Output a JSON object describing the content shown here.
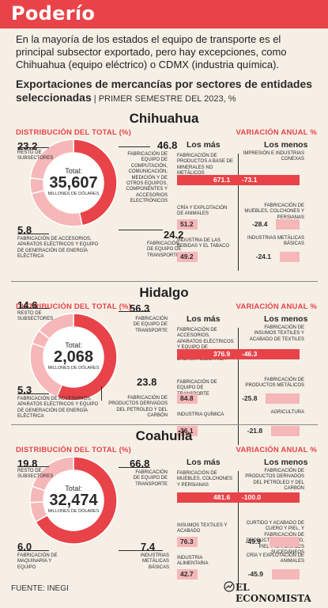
{
  "header": {
    "title": "Poderío"
  },
  "intro": "En la mayoría de los estados el equipo de transporte es el principal subsector exportado, pero hay excepciones, como Chihuahua (equipo eléctrico) o CDMX (industria química).",
  "subtitle": {
    "main": "Exportaciones de mercancías por sectores de entidades seleccionadas",
    "sep": " | ",
    "period": "PRIMER SEMESTRE DEL 2023, %"
  },
  "labels": {
    "dist": "DISTRIBUCIÓN DEL TOTAL (%)",
    "var": "VARIACIÓN ANUAL %",
    "mas": "Los más",
    "menos": "Los menos",
    "total": "Total:",
    "unit": "MILLONES DE DÓLARES"
  },
  "colors": {
    "accent": "#e84349",
    "light": "#f6b7b9",
    "center": "#ffffff"
  },
  "chart_data": [
    {
      "type": "pie",
      "state": "Chihuahua",
      "total": "35,607",
      "slices": [
        {
          "value": "46.8",
          "label": "FABRICACIÓN DE EQUIPO DE COMPUTACIÓN, COMUNICACIÓN, MEDICIÓN Y DE OTROS EQUIPOS, COMPONENTES Y ACCESORIOS ELECTRÓNICOS",
          "color": "#e84349"
        },
        {
          "value": "24.2",
          "label": "FABRICACIÓN DE EQUIPO DE TRANSPORTE",
          "color": "#f6b7b9"
        },
        {
          "value": "5.8",
          "label": "FABRICACIÓN DE ACCESORIOS, APARATOS ELÉCTRICOS Y EQUIPO DE GENERACIÓN DE ENERGÍA ELÉCTRICA",
          "color": "#f6b7b9"
        },
        {
          "value": "23.2",
          "label": "RESTO DE SUBSECTORES",
          "color": "#f6b7b9"
        }
      ],
      "mas": [
        {
          "label": "FABRICACIÓN DE PRODUCTOS A BASE DE MINERALES NO METÁLICOS",
          "value": "671.1"
        },
        {
          "label": "CRÍA Y EXPLOTACIÓN DE ANIMALES",
          "value": "51.2"
        },
        {
          "label": "INDUSTRIA DE LAS BEBIDAS Y EL TABACO",
          "value": "49.2"
        }
      ],
      "menos": [
        {
          "label": "IMPRESIÓN E INDUSTRIAS CONEXAS",
          "value": "-73.1"
        },
        {
          "label": "FABRICACIÓN DE MUEBLES, COLCHONES Y PERSIANAS",
          "value": "-28.4"
        },
        {
          "label": "INDUSTRIAS METÁLICAS BÁSICAS",
          "value": "-24.1"
        }
      ]
    },
    {
      "type": "pie",
      "state": "Hidalgo",
      "total": "2,068",
      "slices": [
        {
          "value": "56.3",
          "label": "FABRICACIÓN DE EQUIPO DE TRANSPORTE",
          "color": "#e84349"
        },
        {
          "value": "23.8",
          "label": "FABRICACIÓN DE PRODUCTOS DERIVADOS DEL PETRÓLEO Y DEL CARBÓN",
          "color": "#f6b7b9"
        },
        {
          "value": "5.3",
          "label": "FABRICACIÓN DE ACCESORIOS, APARATOS ELÉCTRICOS Y EQUIPO DE GENERACIÓN DE ENERGÍA ELÉCTRICA",
          "color": "#f6b7b9"
        },
        {
          "value": "14.6",
          "label": "RESTO DE SUBSECTORES",
          "color": "#f6b7b9"
        }
      ],
      "mas": [
        {
          "label": "FABRICACIÓN DE ACCESORIOS, APARATOS ELÉCTRICOS Y EQUIPO DE GENERACIÓN DE ENERGÍA ELÉCTRICA",
          "value": "376.9"
        },
        {
          "label": "FABRICACIÓN DE EQUIPO DE TRANSPORTE",
          "value": "84.8"
        },
        {
          "label": "INDUSTRIA QUÍMICA",
          "value": "36.1"
        }
      ],
      "menos": [
        {
          "label": "FABRICACIÓN DE INSUMOS TEXTILES Y ACABADO DE TEXTILES",
          "value": "-46.3"
        },
        {
          "label": "FABRICACIÓN DE PRODUCTOS METÁLICOS",
          "value": "-25.8"
        },
        {
          "label": "AGRICULTURA",
          "value": "-21.8"
        }
      ]
    },
    {
      "type": "pie",
      "state": "Coahuila",
      "total": "32,474",
      "slices": [
        {
          "value": "66.8",
          "label": "FABRICACIÓN DE EQUIPO DE TRANSPORTE",
          "color": "#e84349"
        },
        {
          "value": "7.4",
          "label": "INDUSTRIAS METÁLICAS BÁSICAS",
          "color": "#f6b7b9"
        },
        {
          "value": "6.0",
          "label": "FABRICACIÓN DE MAQUINARIA Y EQUIPO",
          "color": "#f6b7b9"
        },
        {
          "value": "19.8",
          "label": "RESTO DE SUBSECTORES",
          "color": "#f6b7b9"
        }
      ],
      "mas": [
        {
          "label": "FABRICACIÓN DE MUEBLES, COLCHONES Y PERSIANAS",
          "value": "481.6"
        },
        {
          "label": "INSUMOS TEXTILES Y ACABADO",
          "value": "76.3"
        },
        {
          "label": "INDUSTRIA ALIMENTARIA",
          "value": "42.7"
        }
      ],
      "menos": [
        {
          "label": "FABRICACIÓN DE PRODUCTOS DERIVADOS DEL PETRÓLEO Y DEL CARBÓN",
          "value": "-100.0"
        },
        {
          "label": "CURTIDO Y ACABADO DE CUERO Y PIEL, Y FABRICACIÓN DE PRODUCTOS DE CUERO, PIEL Y MATERIALES SUCEDÁNEOS",
          "value": "-49.9"
        },
        {
          "label": "CRÍA Y EXPLOTACIÓN DE ANIMALES",
          "value": "-45.9"
        }
      ]
    }
  ],
  "footer": {
    "source": "FUENTE: INEGI",
    "brand": "EL ECONOMISTA"
  }
}
